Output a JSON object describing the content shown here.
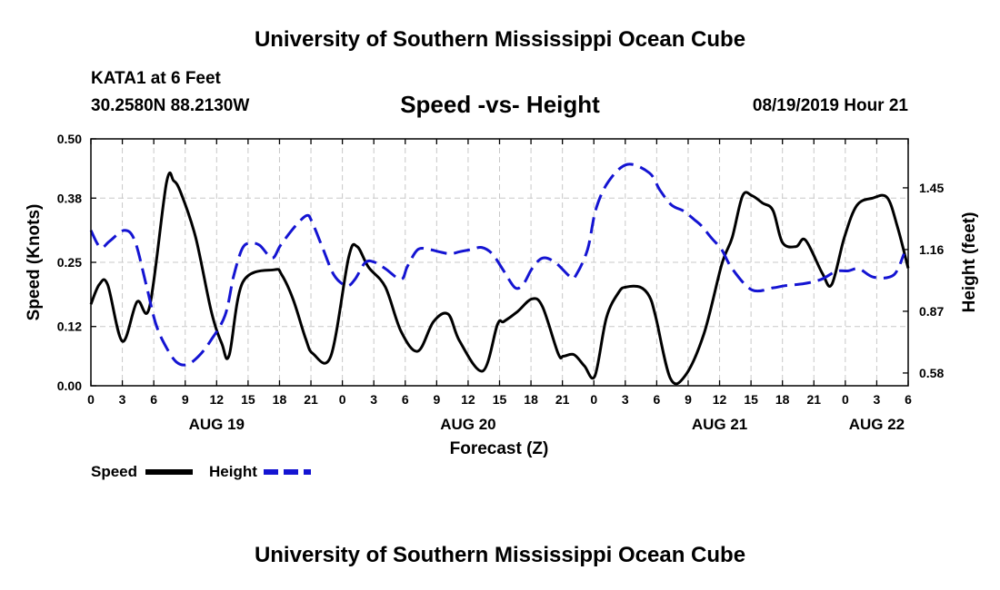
{
  "header": {
    "title": "University of Southern Mississippi Ocean Cube",
    "station": "KATA1 at 6 Feet",
    "coords": "30.2580N 88.2130W",
    "datetime": "08/19/2019 Hour 21"
  },
  "footer": {
    "title": "University of Southern Mississippi Ocean Cube"
  },
  "chart_data": {
    "type": "line",
    "title": "Speed -vs- Height",
    "xlabel": "Forecast (Z)",
    "ylabel": "Speed (Knots)",
    "y2label": "Height (feet)",
    "ylim": [
      0,
      0.5
    ],
    "y2lim": [
      0.52,
      1.68
    ],
    "yticks": [
      "0.00",
      "0.12",
      "0.25",
      "0.38",
      "0.50"
    ],
    "y2ticks": [
      "0.58",
      "0.87",
      "1.16",
      "1.45"
    ],
    "xlim": [
      0,
      78
    ],
    "xticks": [
      0,
      3,
      6,
      9,
      12,
      15,
      18,
      21,
      24,
      27,
      30,
      33,
      36,
      39,
      42,
      45,
      48,
      51,
      54,
      57,
      60,
      63,
      66,
      69,
      72,
      75,
      78
    ],
    "xtick_labels": [
      "0",
      "3",
      "6",
      "9",
      "12",
      "15",
      "18",
      "21",
      "0",
      "3",
      "6",
      "9",
      "12",
      "15",
      "18",
      "21",
      "0",
      "3",
      "6",
      "9",
      "12",
      "15",
      "18",
      "21",
      "0",
      "3",
      "6"
    ],
    "date_labels": [
      {
        "hour": 12,
        "label": "AUG 19"
      },
      {
        "hour": 36,
        "label": "AUG 20"
      },
      {
        "hour": 60,
        "label": "AUG 21"
      },
      {
        "hour": 75,
        "label": "AUG 22"
      }
    ],
    "grid": true,
    "legend_position": "bottom-left",
    "series": [
      {
        "name": "Speed",
        "axis": "left",
        "color": "#000000",
        "style": "solid",
        "x": [
          0,
          0.8,
          1.6,
          3,
          4.4,
          5.6,
          7.2,
          7.9,
          8.6,
          10,
          11.5,
          12.5,
          13.2,
          14.5,
          17.5,
          18.2,
          19.3,
          20.5,
          21.2,
          22.9,
          24.6,
          25.4,
          26.5,
          28.1,
          29.6,
          31.2,
          32.7,
          34.1,
          35.2,
          37.4,
          38.8,
          39.4,
          40.7,
          42.1,
          43.1,
          44.6,
          45.1,
          46.1,
          47.1,
          48.1,
          49.2,
          50.4,
          51.1,
          52.4,
          53.3,
          53.9,
          55.3,
          56.7,
          58.5,
          60.2,
          61.2,
          62.2,
          63.1,
          64.1,
          65.1,
          66,
          67.3,
          68.2,
          69.8,
          70.7,
          71.9,
          73.1,
          74.6,
          76,
          77,
          78
        ],
        "y": [
          0.165,
          0.205,
          0.205,
          0.09,
          0.17,
          0.16,
          0.41,
          0.415,
          0.39,
          0.3,
          0.15,
          0.085,
          0.062,
          0.21,
          0.235,
          0.225,
          0.175,
          0.095,
          0.065,
          0.06,
          0.26,
          0.282,
          0.24,
          0.2,
          0.11,
          0.07,
          0.13,
          0.145,
          0.09,
          0.03,
          0.124,
          0.13,
          0.15,
          0.176,
          0.16,
          0.065,
          0.06,
          0.063,
          0.04,
          0.02,
          0.138,
          0.19,
          0.2,
          0.2,
          0.181,
          0.14,
          0.015,
          0.02,
          0.105,
          0.245,
          0.3,
          0.385,
          0.385,
          0.37,
          0.355,
          0.29,
          0.282,
          0.295,
          0.228,
          0.205,
          0.3,
          0.365,
          0.38,
          0.381,
          0.32,
          0.238
        ]
      },
      {
        "name": "Height",
        "axis": "right",
        "color": "#1414d2",
        "style": "dashed",
        "x": [
          0,
          0.9,
          1.8,
          3.2,
          4.2,
          5.3,
          6.2,
          7.2,
          8.2,
          9.2,
          10.3,
          11.4,
          12.8,
          13.6,
          14.4,
          15.1,
          16.1,
          17.3,
          18.1,
          19.5,
          20.6,
          21.1,
          22.1,
          23.2,
          24.4,
          25.2,
          26.2,
          27.1,
          28.1,
          29.6,
          30.2,
          31.2,
          32.3,
          33.2,
          34.3,
          35.2,
          36.3,
          37.3,
          38.3,
          39.4,
          40.5,
          41.3,
          42.1,
          43.1,
          44.3,
          45.8,
          46.3,
          47.4,
          48.2,
          49.4,
          51.2,
          53.3,
          54.3,
          55.4,
          56.6,
          57.6,
          58.3,
          59.3,
          60.2,
          61.2,
          63.1,
          65.1,
          66.2,
          68.1,
          69.7,
          70.8,
          71.4,
          72.3,
          73.3,
          74.7,
          76.6,
          77.6
        ],
        "y": [
          1.25,
          1.17,
          1.2,
          1.25,
          1.2,
          0.99,
          0.81,
          0.7,
          0.63,
          0.62,
          0.66,
          0.73,
          0.85,
          1.03,
          1.16,
          1.19,
          1.18,
          1.12,
          1.18,
          1.27,
          1.32,
          1.29,
          1.17,
          1.04,
          0.99,
          1.02,
          1.1,
          1.1,
          1.07,
          1.02,
          1.08,
          1.16,
          1.16,
          1.15,
          1.14,
          1.15,
          1.16,
          1.17,
          1.14,
          1.06,
          0.98,
          1.0,
          1.07,
          1.12,
          1.1,
          1.03,
          1.04,
          1.16,
          1.35,
          1.48,
          1.56,
          1.52,
          1.44,
          1.37,
          1.34,
          1.3,
          1.27,
          1.21,
          1.16,
          1.07,
          0.97,
          0.98,
          0.99,
          1.0,
          1.02,
          1.05,
          1.06,
          1.06,
          1.07,
          1.03,
          1.04,
          1.14
        ]
      }
    ]
  }
}
